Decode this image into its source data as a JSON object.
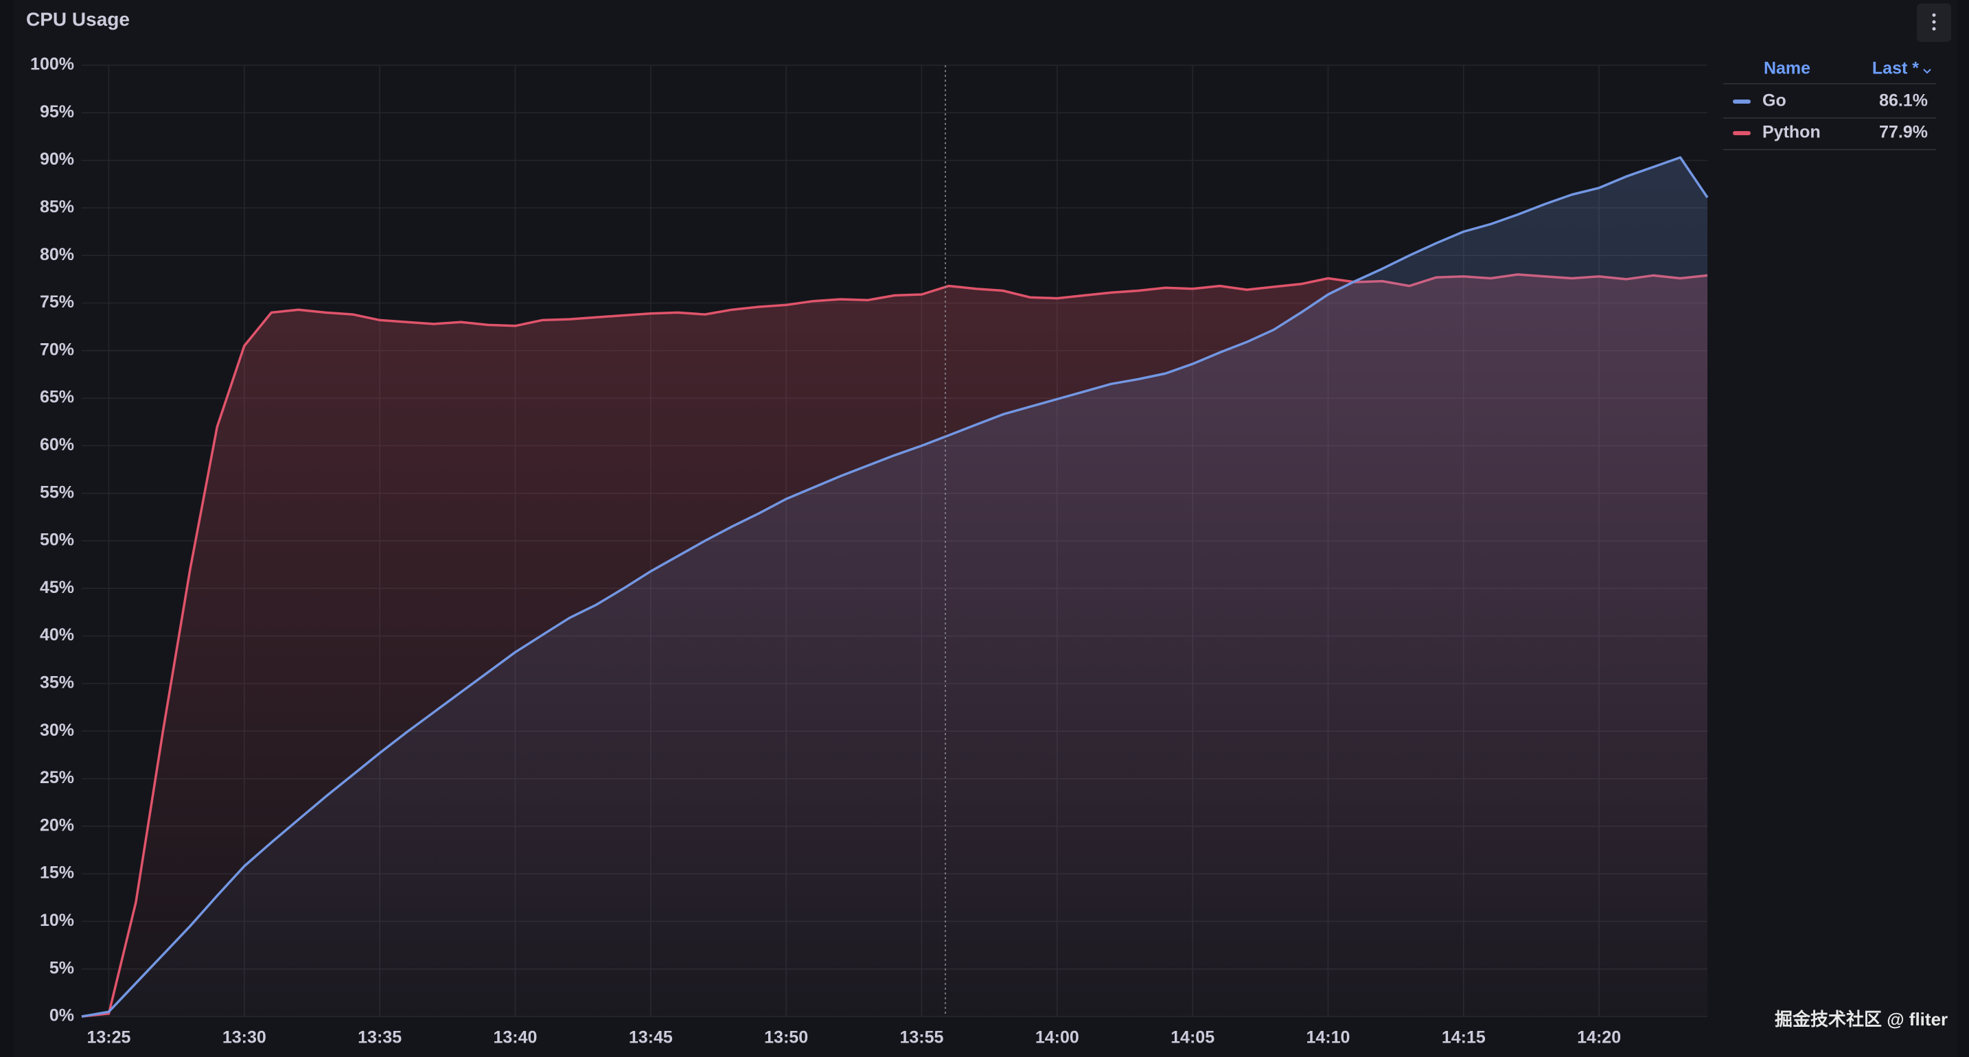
{
  "chart_data": {
    "type": "line",
    "title": "CPU Usage",
    "x": [
      "13:24",
      "13:25",
      "13:26",
      "13:27",
      "13:28",
      "13:29",
      "13:30",
      "13:31",
      "13:32",
      "13:33",
      "13:34",
      "13:35",
      "13:36",
      "13:37",
      "13:38",
      "13:39",
      "13:40",
      "13:41",
      "13:42",
      "13:43",
      "13:44",
      "13:45",
      "13:46",
      "13:47",
      "13:48",
      "13:49",
      "13:50",
      "13:51",
      "13:52",
      "13:53",
      "13:54",
      "13:55",
      "13:56",
      "13:57",
      "13:58",
      "13:59",
      "14:00",
      "14:01",
      "14:02",
      "14:03",
      "14:04",
      "14:05",
      "14:06",
      "14:07",
      "14:08",
      "14:09",
      "14:10",
      "14:11",
      "14:12",
      "14:13",
      "14:14",
      "14:15",
      "14:16",
      "14:17",
      "14:18",
      "14:19",
      "14:20",
      "14:21",
      "14:22",
      "14:23",
      "14:24"
    ],
    "series": [
      {
        "name": "Go",
        "color": "#7397e3",
        "legend_value": "86.1%",
        "values": [
          0,
          0.5,
          3.5,
          6.5,
          9.5,
          12.7,
          15.8,
          18.3,
          20.7,
          23.1,
          25.4,
          27.7,
          29.9,
          32.0,
          34.1,
          36.2,
          38.3,
          40.1,
          41.9,
          43.3,
          45.0,
          46.8,
          48.4,
          50.0,
          51.5,
          52.9,
          54.4,
          55.6,
          56.8,
          57.9,
          59.0,
          60.0,
          61.1,
          62.2,
          63.3,
          64.1,
          64.9,
          65.7,
          66.5,
          67.0,
          67.6,
          68.6,
          69.8,
          70.9,
          72.2,
          74.0,
          75.9,
          77.3,
          78.6,
          80.0,
          81.3,
          82.5,
          83.3,
          84.3,
          85.4,
          86.4,
          87.1,
          88.3,
          89.3,
          90.3,
          86.1
        ]
      },
      {
        "name": "Python",
        "color": "#e0546b",
        "legend_value": "77.9%",
        "values": [
          0,
          0.3,
          12,
          30,
          47,
          62,
          70.5,
          74,
          74.3,
          74,
          73.8,
          73.2,
          73,
          72.8,
          73,
          72.7,
          72.6,
          73.2,
          73.3,
          73.5,
          73.7,
          73.9,
          74,
          73.8,
          74.3,
          74.6,
          74.8,
          75.2,
          75.4,
          75.3,
          75.8,
          75.9,
          76.8,
          76.5,
          76.3,
          75.6,
          75.5,
          75.8,
          76.1,
          76.3,
          76.6,
          76.5,
          76.8,
          76.4,
          76.7,
          77.0,
          77.6,
          77.2,
          77.3,
          76.8,
          77.7,
          77.8,
          77.6,
          78.0,
          77.8,
          77.6,
          77.8,
          77.5,
          77.9,
          77.6,
          77.9
        ]
      }
    ],
    "xlim": [
      "13:24",
      "14:24"
    ],
    "xticks": [
      "13:25",
      "13:30",
      "13:35",
      "13:40",
      "13:45",
      "13:50",
      "13:55",
      "14:00",
      "14:05",
      "14:10",
      "14:15",
      "14:20"
    ],
    "ylim": [
      0,
      100
    ],
    "yticks": [
      {
        "value": 0,
        "label": "0%"
      },
      {
        "value": 5,
        "label": "5%"
      },
      {
        "value": 10,
        "label": "10%"
      },
      {
        "value": 15,
        "label": "15%"
      },
      {
        "value": 20,
        "label": "20%"
      },
      {
        "value": 25,
        "label": "25%"
      },
      {
        "value": 30,
        "label": "30%"
      },
      {
        "value": 35,
        "label": "35%"
      },
      {
        "value": 40,
        "label": "40%"
      },
      {
        "value": 45,
        "label": "45%"
      },
      {
        "value": 50,
        "label": "50%"
      },
      {
        "value": 55,
        "label": "55%"
      },
      {
        "value": 60,
        "label": "60%"
      },
      {
        "value": 65,
        "label": "65%"
      },
      {
        "value": 70,
        "label": "70%"
      },
      {
        "value": 75,
        "label": "75%"
      },
      {
        "value": 80,
        "label": "80%"
      },
      {
        "value": 85,
        "label": "85%"
      },
      {
        "value": 90,
        "label": "90%"
      },
      {
        "value": 95,
        "label": "95%"
      },
      {
        "value": 100,
        "label": "100%"
      }
    ],
    "grid": true,
    "legend": {
      "columns": [
        "Name",
        "Last *"
      ]
    },
    "watermark": "掘金技术社区 @ fliter"
  }
}
